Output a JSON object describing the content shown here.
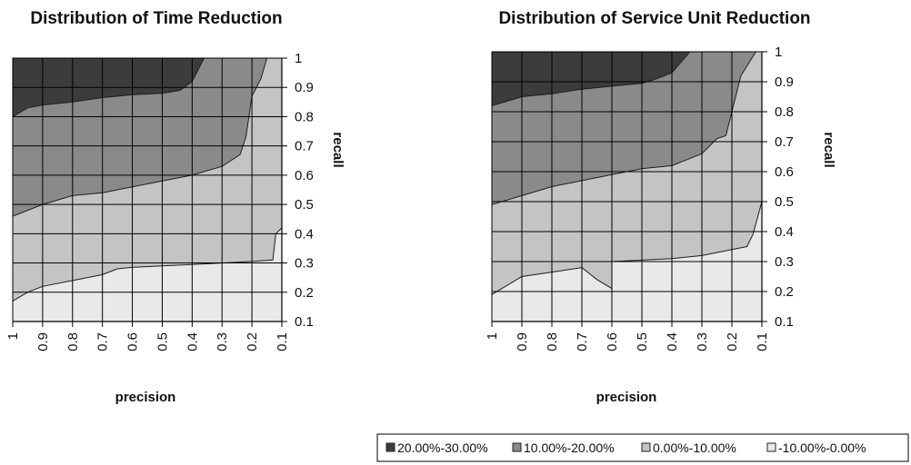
{
  "colors": {
    "20.00%-30.00%": "#3c3c3c",
    "10.00%-20.00%": "#8a8a8a",
    "0.00%-10.00%": "#c4c4c4",
    "-10.00%-0.00%": "#e9e9e9",
    "grid": "#000000",
    "boundary": "#1e1e1e"
  },
  "legend": {
    "entries": [
      "20.00%-30.00%",
      "10.00%-20.00%",
      "0.00%-10.00%",
      "-10.00%-0.00%"
    ]
  },
  "chart_data": [
    {
      "type": "area",
      "title": "Distribution of Time Reduction",
      "xlabel": "precision",
      "ylabel": "recall",
      "x_ticks": [
        "1",
        "0.9",
        "0.8",
        "0.7",
        "0.6",
        "0.5",
        "0.4",
        "0.3",
        "0.2",
        "0.1"
      ],
      "y_ticks": [
        "0.1",
        "0.2",
        "0.3",
        "0.4",
        "0.5",
        "0.6",
        "0.7",
        "0.8",
        "0.9",
        "1"
      ],
      "xlim": [
        1,
        0.1
      ],
      "ylim": [
        0.1,
        1
      ],
      "grid": true,
      "bands": [
        "-10.00%-0.00%",
        "0.00%-10.00%",
        "10.00%-20.00%",
        "20.00%-30.00%"
      ],
      "boundaries": [
        {
          "name": "0%",
          "points": [
            [
              1,
              0.17
            ],
            [
              0.95,
              0.2
            ],
            [
              0.9,
              0.22
            ],
            [
              0.8,
              0.24
            ],
            [
              0.7,
              0.26
            ],
            [
              0.65,
              0.28
            ],
            [
              0.6,
              0.285
            ],
            [
              0.5,
              0.29
            ],
            [
              0.4,
              0.295
            ],
            [
              0.3,
              0.3
            ],
            [
              0.2,
              0.305
            ],
            [
              0.13,
              0.31
            ],
            [
              0.12,
              0.4
            ],
            [
              0.1,
              0.42
            ]
          ]
        },
        {
          "name": "10%",
          "points": [
            [
              1,
              0.46
            ],
            [
              0.9,
              0.5
            ],
            [
              0.8,
              0.53
            ],
            [
              0.7,
              0.54
            ],
            [
              0.6,
              0.56
            ],
            [
              0.5,
              0.58
            ],
            [
              0.4,
              0.6
            ],
            [
              0.3,
              0.63
            ],
            [
              0.24,
              0.67
            ],
            [
              0.22,
              0.73
            ],
            [
              0.2,
              0.87
            ],
            [
              0.17,
              0.93
            ],
            [
              0.15,
              1
            ]
          ]
        },
        {
          "name": "20%",
          "points": [
            [
              1,
              0.8
            ],
            [
              0.95,
              0.83
            ],
            [
              0.9,
              0.84
            ],
            [
              0.8,
              0.85
            ],
            [
              0.7,
              0.865
            ],
            [
              0.6,
              0.875
            ],
            [
              0.5,
              0.88
            ],
            [
              0.44,
              0.89
            ],
            [
              0.4,
              0.92
            ],
            [
              0.36,
              1
            ]
          ]
        }
      ]
    },
    {
      "type": "area",
      "title": "Distribution of Service Unit Reduction",
      "xlabel": "precision",
      "ylabel": "recall",
      "x_ticks": [
        "1",
        "0.9",
        "0.8",
        "0.7",
        "0.6",
        "0.5",
        "0.4",
        "0.3",
        "0.2",
        "0.1"
      ],
      "y_ticks": [
        "0.1",
        "0.2",
        "0.3",
        "0.4",
        "0.5",
        "0.6",
        "0.7",
        "0.8",
        "0.9",
        "1"
      ],
      "xlim": [
        1,
        0.1
      ],
      "ylim": [
        0.1,
        1
      ],
      "grid": true,
      "bands": [
        "-10.00%-0.00%",
        "0.00%-10.00%",
        "10.00%-20.00%",
        "20.00%-30.00%"
      ],
      "boundaries": [
        {
          "name": "0%",
          "points": [
            [
              1,
              0.19
            ],
            [
              0.9,
              0.25
            ],
            [
              0.8,
              0.265
            ],
            [
              0.7,
              0.28
            ],
            [
              0.65,
              0.24
            ],
            [
              0.6,
              0.21
            ],
            [
              0.6,
              0.3
            ],
            [
              0.5,
              0.305
            ],
            [
              0.4,
              0.31
            ],
            [
              0.3,
              0.32
            ],
            [
              0.2,
              0.34
            ],
            [
              0.15,
              0.35
            ],
            [
              0.13,
              0.39
            ],
            [
              0.1,
              0.5
            ]
          ]
        },
        {
          "name": "10%",
          "points": [
            [
              1,
              0.49
            ],
            [
              0.9,
              0.52
            ],
            [
              0.8,
              0.55
            ],
            [
              0.7,
              0.57
            ],
            [
              0.6,
              0.59
            ],
            [
              0.5,
              0.61
            ],
            [
              0.4,
              0.62
            ],
            [
              0.35,
              0.64
            ],
            [
              0.3,
              0.66
            ],
            [
              0.25,
              0.71
            ],
            [
              0.22,
              0.72
            ],
            [
              0.2,
              0.8
            ],
            [
              0.17,
              0.92
            ],
            [
              0.12,
              1
            ]
          ]
        },
        {
          "name": "20%",
          "points": [
            [
              1,
              0.82
            ],
            [
              0.9,
              0.85
            ],
            [
              0.8,
              0.86
            ],
            [
              0.7,
              0.875
            ],
            [
              0.6,
              0.885
            ],
            [
              0.5,
              0.895
            ],
            [
              0.45,
              0.91
            ],
            [
              0.4,
              0.93
            ],
            [
              0.34,
              1
            ]
          ]
        }
      ]
    }
  ]
}
